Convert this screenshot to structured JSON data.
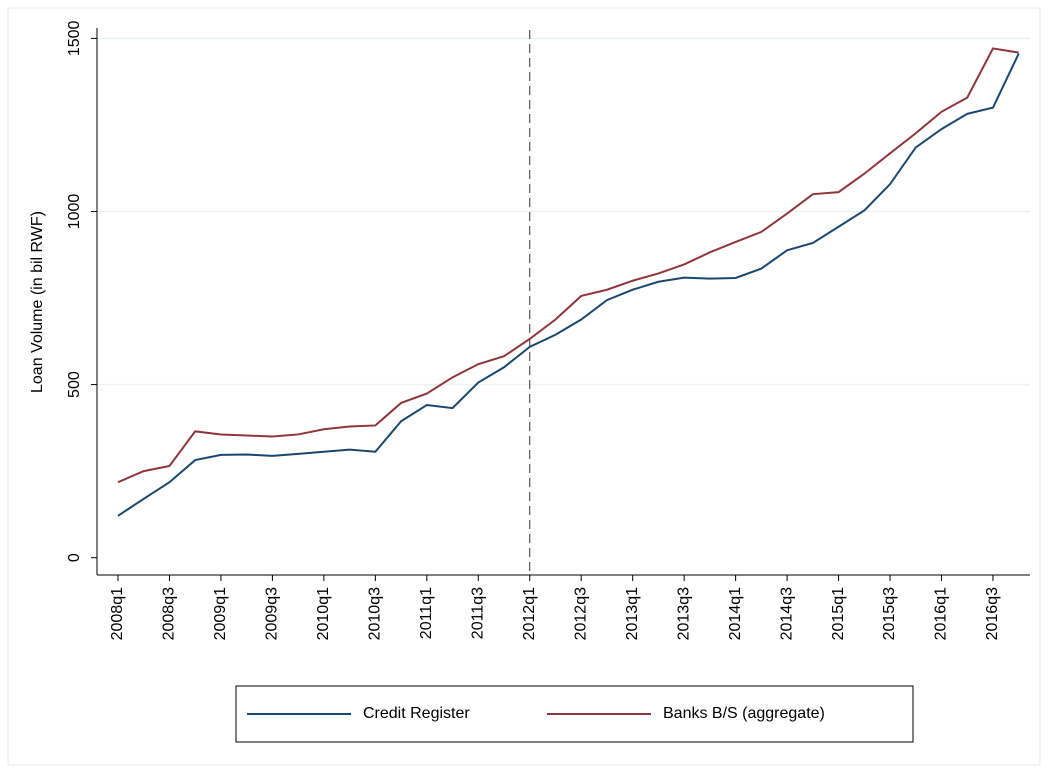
{
  "chart_data": {
    "type": "line",
    "ylabel": "Loan Volume (in bil RWF)",
    "categories": [
      "2008q1",
      null,
      "2008q3",
      null,
      "2009q1",
      null,
      "2009q3",
      null,
      "2010q1",
      null,
      "2010q3",
      null,
      "2011q1",
      null,
      "2011q3",
      null,
      "2012q1",
      null,
      "2012q3",
      null,
      "2013q1",
      null,
      "2013q3",
      null,
      "2014q1",
      null,
      "2014q3",
      null,
      "2015q1",
      null,
      "2015q3",
      null,
      "2016q1",
      null,
      "2016q3",
      null
    ],
    "series": [
      {
        "name": "Credit Register",
        "color": "#1a476f",
        "values": [
          121,
          170,
          218,
          282,
          297,
          298,
          294,
          300,
          306,
          312,
          306,
          394,
          441,
          432,
          506,
          550,
          609,
          644,
          688,
          744,
          774,
          797,
          809,
          806,
          808,
          835,
          888,
          909,
          956,
          1003,
          1079,
          1185,
          1238,
          1282,
          1300,
          1456
        ]
      },
      {
        "name": "Banks B/S (aggregate)",
        "color": "#90353b",
        "values": [
          218,
          250,
          265,
          365,
          356,
          353,
          350,
          356,
          371,
          379,
          382,
          447,
          474,
          521,
          559,
          582,
          632,
          688,
          756,
          774,
          800,
          821,
          847,
          882,
          912,
          941,
          994,
          1050,
          1056,
          1109,
          1168,
          1226,
          1288,
          1329,
          1471,
          1459
        ]
      }
    ],
    "ylim": [
      -50,
      1530
    ],
    "yticks": [
      0,
      500,
      1000,
      1500
    ],
    "grid": true,
    "vline": "2012q1",
    "legend": "bottom"
  }
}
